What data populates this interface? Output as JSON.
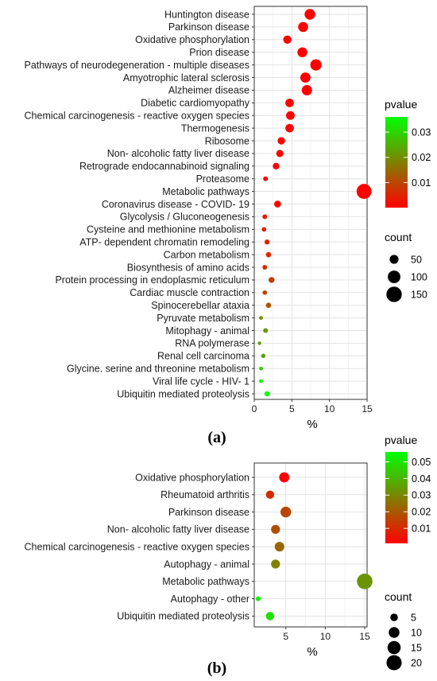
{
  "chart_data": [
    {
      "type": "scatter",
      "panel_label": "(a)",
      "xlabel": "%",
      "xlim": [
        0,
        15
      ],
      "xticks": [
        0,
        5,
        10,
        15
      ],
      "grid": true,
      "categories": [
        "Huntington disease",
        "Parkinson disease",
        "Oxidative phosphorylation",
        "Prion disease",
        "Pathways of neurodegeneration - multiple diseases",
        "Amyotrophic lateral sclerosis",
        "Alzheimer disease",
        "Diabetic cardiomyopathy",
        "Chemical carcinogenesis - reactive oxygen species",
        "Thermogenesis",
        "Ribosome",
        "Non- alcoholic fatty liver disease",
        "Retrograde endocannabinoid signaling",
        "Proteasome",
        "Metabolic pathways",
        "Coronavirus disease - COVID- 19",
        "Glycolysis / Gluconeogenesis",
        "Cysteine and methionine metabolism",
        "ATP- dependent chromatin remodeling",
        "Carbon metabolism",
        "Biosynthesis of amino acids",
        "Protein processing in endoplasmic reticulum",
        "Cardiac muscle contraction",
        "Spinocerebellar ataxia",
        "Pyruvate metabolism",
        "Mitophagy - animal",
        "RNA polymerase",
        "Renal cell carcinoma",
        "Glycine. serine and threonine metabolism",
        "Viral life cycle - HIV- 1",
        "Ubiquitin mediated proteolysis"
      ],
      "points": [
        {
          "x": 7.4,
          "pvalue": 0.0001,
          "count": 72
        },
        {
          "x": 6.5,
          "pvalue": 0.0001,
          "count": 63
        },
        {
          "x": 4.4,
          "pvalue": 0.0004,
          "count": 43
        },
        {
          "x": 6.4,
          "pvalue": 0.0001,
          "count": 62
        },
        {
          "x": 8.2,
          "pvalue": 0.0001,
          "count": 80
        },
        {
          "x": 6.8,
          "pvalue": 0.0001,
          "count": 66
        },
        {
          "x": 7.0,
          "pvalue": 0.0001,
          "count": 68
        },
        {
          "x": 4.7,
          "pvalue": 0.0003,
          "count": 46
        },
        {
          "x": 4.8,
          "pvalue": 0.0003,
          "count": 47
        },
        {
          "x": 4.7,
          "pvalue": 0.0004,
          "count": 46
        },
        {
          "x": 3.6,
          "pvalue": 0.0007,
          "count": 35
        },
        {
          "x": 3.4,
          "pvalue": 0.0007,
          "count": 33
        },
        {
          "x": 2.9,
          "pvalue": 0.0012,
          "count": 28
        },
        {
          "x": 1.5,
          "pvalue": 0.0018,
          "count": 14
        },
        {
          "x": 14.6,
          "pvalue": 0.0002,
          "count": 142
        },
        {
          "x": 3.1,
          "pvalue": 0.0015,
          "count": 30
        },
        {
          "x": 1.4,
          "pvalue": 0.003,
          "count": 14
        },
        {
          "x": 1.3,
          "pvalue": 0.004,
          "count": 13
        },
        {
          "x": 1.7,
          "pvalue": 0.0045,
          "count": 16
        },
        {
          "x": 1.9,
          "pvalue": 0.006,
          "count": 18
        },
        {
          "x": 1.4,
          "pvalue": 0.007,
          "count": 14
        },
        {
          "x": 2.3,
          "pvalue": 0.009,
          "count": 22
        },
        {
          "x": 1.4,
          "pvalue": 0.01,
          "count": 13
        },
        {
          "x": 1.9,
          "pvalue": 0.012,
          "count": 18
        },
        {
          "x": 0.9,
          "pvalue": 0.02,
          "count": 9
        },
        {
          "x": 1.5,
          "pvalue": 0.021,
          "count": 14
        },
        {
          "x": 0.7,
          "pvalue": 0.022,
          "count": 7
        },
        {
          "x": 1.2,
          "pvalue": 0.023,
          "count": 12
        },
        {
          "x": 0.9,
          "pvalue": 0.028,
          "count": 9
        },
        {
          "x": 0.9,
          "pvalue": 0.034,
          "count": 9
        },
        {
          "x": 1.7,
          "pvalue": 0.036,
          "count": 17
        }
      ],
      "color_legend": {
        "title": "pvalue",
        "ticks": [
          0.01,
          0.02,
          0.03
        ],
        "range": [
          0.0001,
          0.036
        ],
        "low_color": "#ff0000",
        "high_color": "#00ff00"
      },
      "size_legend": {
        "title": "count",
        "values": [
          50,
          100,
          150
        ]
      }
    },
    {
      "type": "scatter",
      "panel_label": "(b)",
      "xlabel": "%",
      "xlim": [
        1,
        15.3
      ],
      "xticks": [
        5,
        10,
        15
      ],
      "grid": true,
      "categories": [
        "Oxidative phosphorylation",
        "Rheumatoid arthritis",
        "Parkinson disease",
        "Non- alcoholic fatty liver disease",
        "Chemical carcinogenesis - reactive oxygen species",
        "Autophagy - animal",
        "Metabolic pathways",
        "Autophagy - other",
        "Ubiquitin mediated proteolysis"
      ],
      "points": [
        {
          "x": 4.8,
          "pvalue": 0.001,
          "count": 9
        },
        {
          "x": 3.0,
          "pvalue": 0.011,
          "count": 6
        },
        {
          "x": 5.0,
          "pvalue": 0.016,
          "count": 10
        },
        {
          "x": 3.7,
          "pvalue": 0.018,
          "count": 7
        },
        {
          "x": 4.2,
          "pvalue": 0.023,
          "count": 8
        },
        {
          "x": 3.7,
          "pvalue": 0.029,
          "count": 7
        },
        {
          "x": 15.0,
          "pvalue": 0.033,
          "count": 21
        },
        {
          "x": 1.5,
          "pvalue": 0.053,
          "count": 2
        },
        {
          "x": 3.0,
          "pvalue": 0.05,
          "count": 6
        }
      ],
      "color_legend": {
        "title": "pvalue",
        "ticks": [
          0.01,
          0.02,
          0.03,
          0.04,
          0.05
        ],
        "range": [
          0.001,
          0.056
        ],
        "low_color": "#ff0000",
        "high_color": "#00ff00"
      },
      "size_legend": {
        "title": "count",
        "values": [
          5,
          10,
          15,
          20
        ]
      }
    }
  ]
}
